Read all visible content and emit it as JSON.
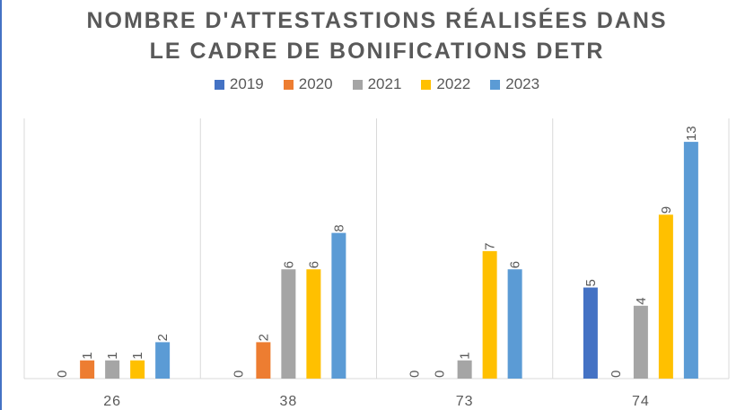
{
  "chart_data": {
    "type": "bar",
    "title_line1": "NOMBRE D'ATTESTASTIONS RÉALISÉES DANS",
    "title_line2": "LE CADRE DE BONIFICATIONS DETR",
    "categories": [
      "26",
      "38",
      "73",
      "74"
    ],
    "series": [
      {
        "name": "2019",
        "color": "#4472c4",
        "values": [
          0,
          0,
          0,
          5
        ]
      },
      {
        "name": "2020",
        "color": "#ed7d31",
        "values": [
          1,
          2,
          0,
          0
        ]
      },
      {
        "name": "2021",
        "color": "#a5a5a5",
        "values": [
          1,
          6,
          1,
          4
        ]
      },
      {
        "name": "2022",
        "color": "#ffc000",
        "values": [
          1,
          6,
          7,
          9
        ]
      },
      {
        "name": "2023",
        "color": "#5b9bd5",
        "values": [
          2,
          8,
          6,
          13
        ]
      }
    ],
    "ylim": [
      0,
      14
    ],
    "legend_position": "top",
    "grid": "vertical category separators"
  }
}
